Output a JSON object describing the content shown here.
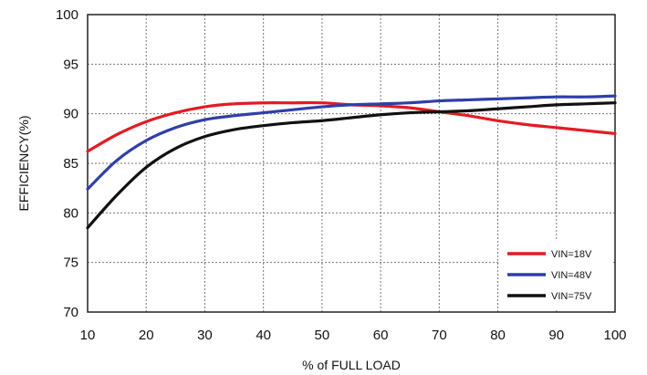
{
  "chart_data": {
    "type": "line",
    "title": "",
    "xlabel": "% of FULL LOAD",
    "ylabel": "EFFICIENCY(%)",
    "xlim": [
      10,
      100
    ],
    "ylim": [
      70,
      100
    ],
    "x_ticks": [
      10,
      20,
      30,
      40,
      50,
      60,
      70,
      80,
      90,
      100
    ],
    "y_ticks": [
      70,
      75,
      80,
      85,
      90,
      95,
      100
    ],
    "grid": true,
    "legend_position": "bottom-right",
    "series": [
      {
        "name": "VIN=18V",
        "color": "#e31b23",
        "x": [
          10,
          15,
          20,
          25,
          30,
          35,
          40,
          45,
          50,
          55,
          60,
          65,
          70,
          75,
          80,
          85,
          90,
          95,
          100
        ],
        "y": [
          86.2,
          87.9,
          89.2,
          90.1,
          90.7,
          91.0,
          91.1,
          91.1,
          91.1,
          90.9,
          90.8,
          90.6,
          90.2,
          89.8,
          89.3,
          88.9,
          88.6,
          88.3,
          88.0
        ]
      },
      {
        "name": "VIN=48V",
        "color": "#2e3fa8",
        "x": [
          10,
          15,
          20,
          25,
          30,
          35,
          40,
          45,
          50,
          55,
          60,
          65,
          70,
          75,
          80,
          85,
          90,
          95,
          100
        ],
        "y": [
          82.4,
          85.3,
          87.3,
          88.6,
          89.4,
          89.8,
          90.1,
          90.4,
          90.7,
          90.9,
          91.0,
          91.1,
          91.3,
          91.4,
          91.5,
          91.6,
          91.7,
          91.7,
          91.8
        ]
      },
      {
        "name": "VIN=75V",
        "color": "#111111",
        "x": [
          10,
          15,
          20,
          25,
          30,
          35,
          40,
          45,
          50,
          55,
          60,
          65,
          70,
          75,
          80,
          85,
          90,
          95,
          100
        ],
        "y": [
          78.5,
          81.8,
          84.6,
          86.5,
          87.7,
          88.4,
          88.8,
          89.1,
          89.3,
          89.6,
          89.9,
          90.1,
          90.2,
          90.3,
          90.5,
          90.7,
          90.9,
          91.0,
          91.1
        ]
      }
    ]
  }
}
